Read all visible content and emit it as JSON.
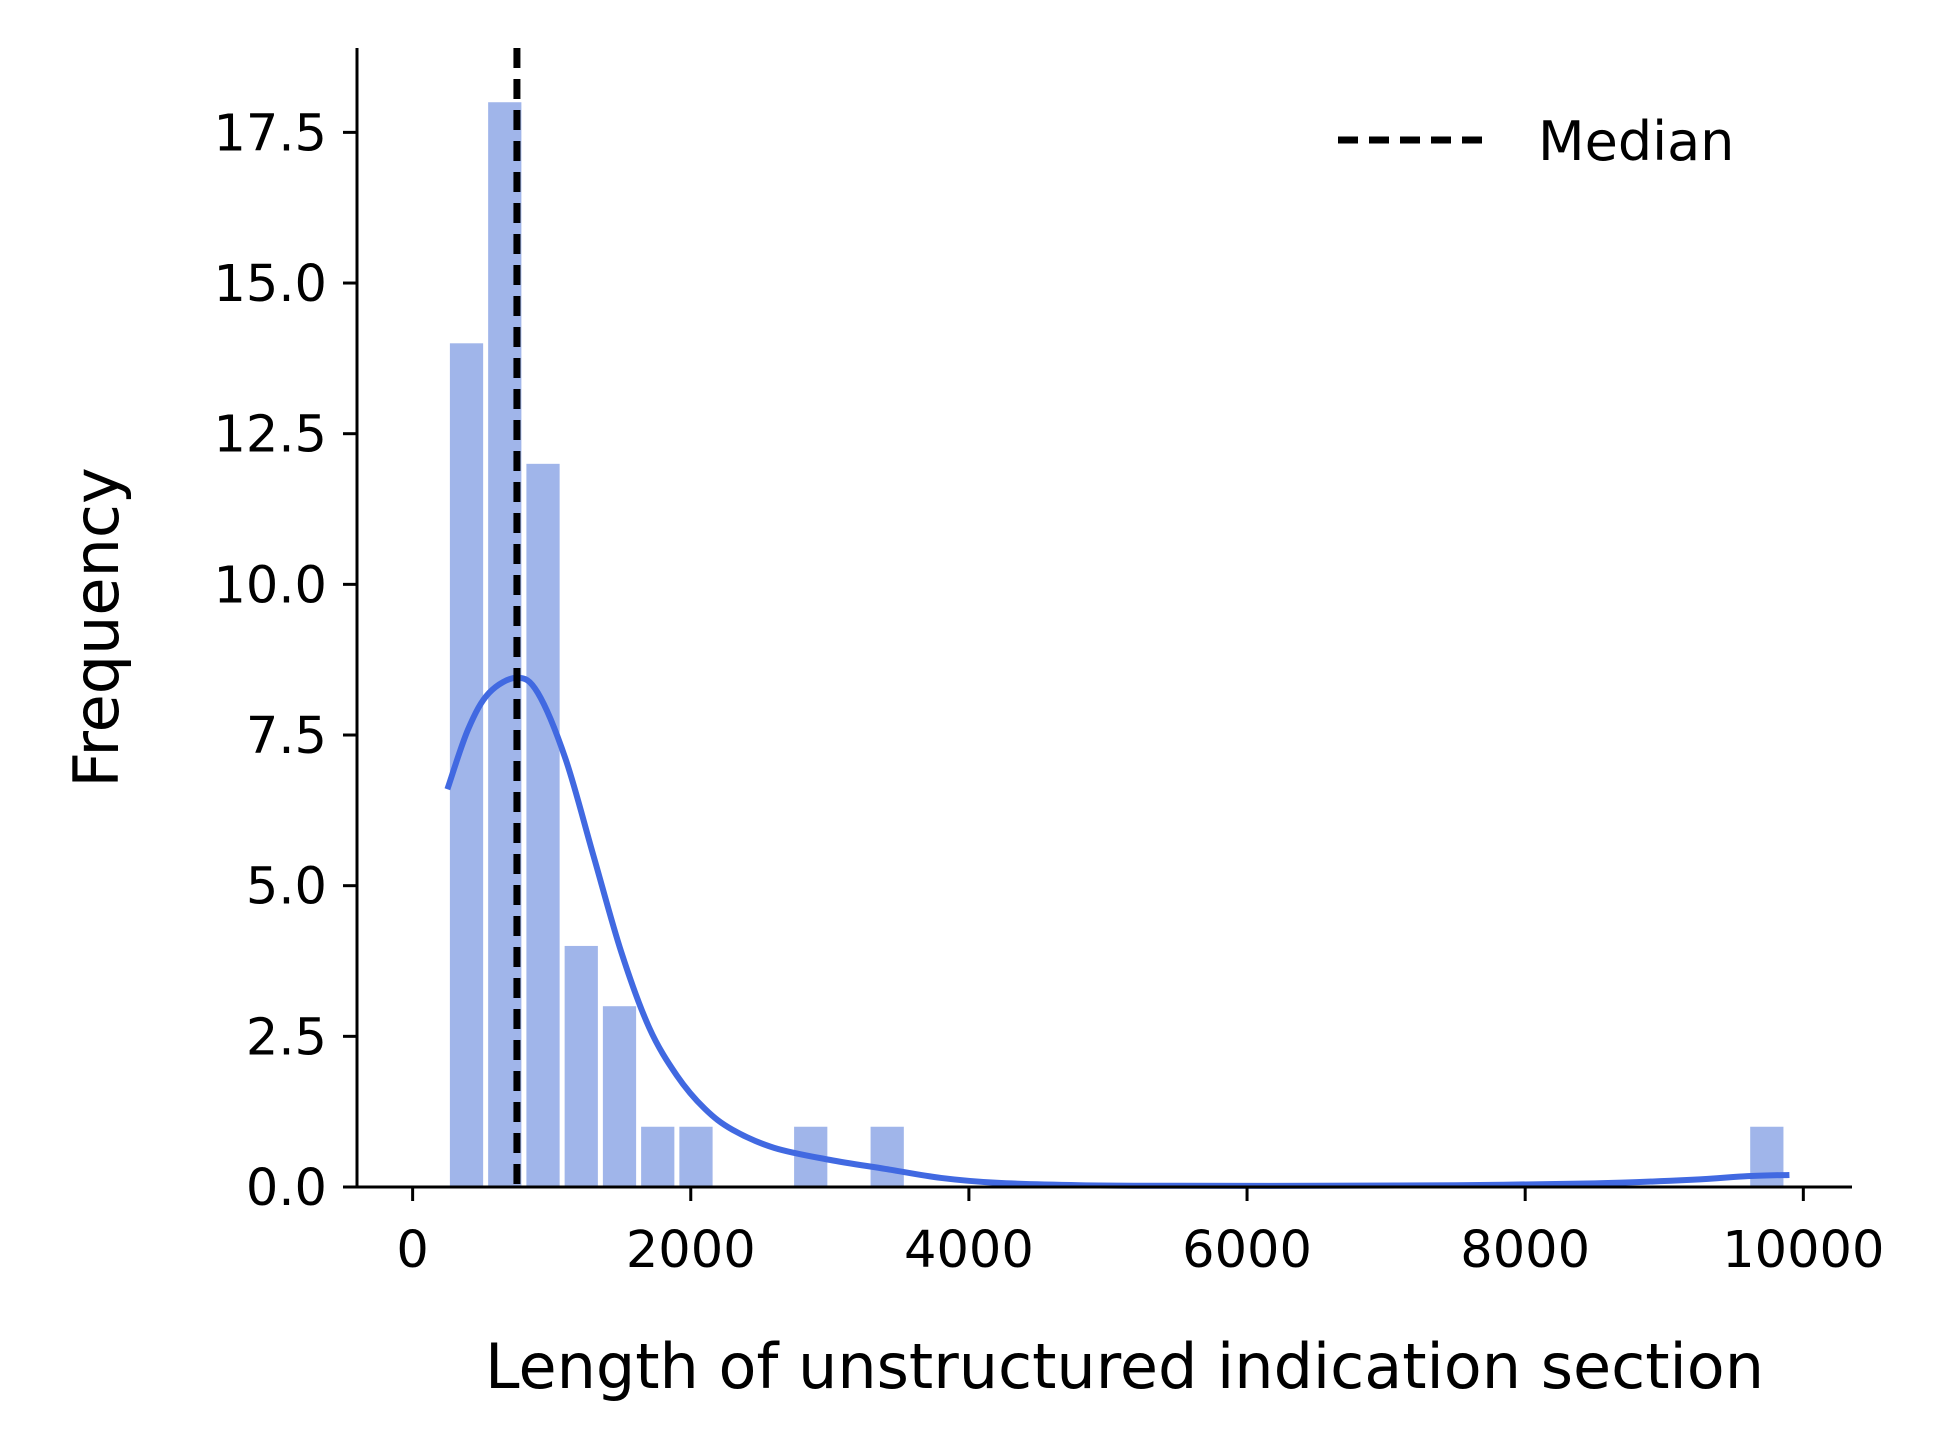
{
  "chart_data": {
    "type": "bar",
    "subtype": "histogram-with-kde",
    "xlabel": "Length of unstructured indication section",
    "ylabel": "Frequency",
    "xlim": [
      -400,
      10350
    ],
    "ylim": [
      0,
      18.9
    ],
    "x_ticks": [
      0,
      2000,
      4000,
      6000,
      8000,
      10000
    ],
    "y_ticks": [
      0.0,
      2.5,
      5.0,
      7.5,
      10.0,
      12.5,
      15.0,
      17.5
    ],
    "x_tick_labels": [
      "0",
      "2000",
      "4000",
      "6000",
      "8000",
      "10000"
    ],
    "y_tick_labels": [
      "0.0",
      "2.5",
      "5.0",
      "7.5",
      "10.0",
      "12.5",
      "15.0",
      "17.5"
    ],
    "bins": [
      {
        "x0": 250,
        "x1": 525,
        "count": 14
      },
      {
        "x0": 525,
        "x1": 800,
        "count": 18
      },
      {
        "x0": 800,
        "x1": 1075,
        "count": 12
      },
      {
        "x0": 1075,
        "x1": 1350,
        "count": 4
      },
      {
        "x0": 1350,
        "x1": 1625,
        "count": 3
      },
      {
        "x0": 1625,
        "x1": 1900,
        "count": 1
      },
      {
        "x0": 1900,
        "x1": 2175,
        "count": 1
      },
      {
        "x0": 2725,
        "x1": 3000,
        "count": 1
      },
      {
        "x0": 3275,
        "x1": 3550,
        "count": 1
      },
      {
        "x0": 9600,
        "x1": 9875,
        "count": 1
      }
    ],
    "kde": {
      "x": [
        250,
        400,
        550,
        750,
        900,
        1100,
        1300,
        1500,
        1700,
        1900,
        2100,
        2300,
        2600,
        3000,
        3400,
        3800,
        4200,
        4800,
        5500,
        6500,
        7500,
        8500,
        9200,
        9600,
        9900
      ],
      "y": [
        6.6,
        7.6,
        8.2,
        8.45,
        8.2,
        7.1,
        5.5,
        3.9,
        2.65,
        1.85,
        1.3,
        0.95,
        0.65,
        0.45,
        0.3,
        0.15,
        0.07,
        0.03,
        0.02,
        0.02,
        0.03,
        0.06,
        0.12,
        0.18,
        0.2
      ]
    },
    "median": 750,
    "bar_color": "#a0b5ea",
    "line_color": "#4169e1",
    "median_color": "#000000",
    "grid": false,
    "legend": {
      "placement": "top-right",
      "entries": [
        "Median"
      ]
    }
  }
}
